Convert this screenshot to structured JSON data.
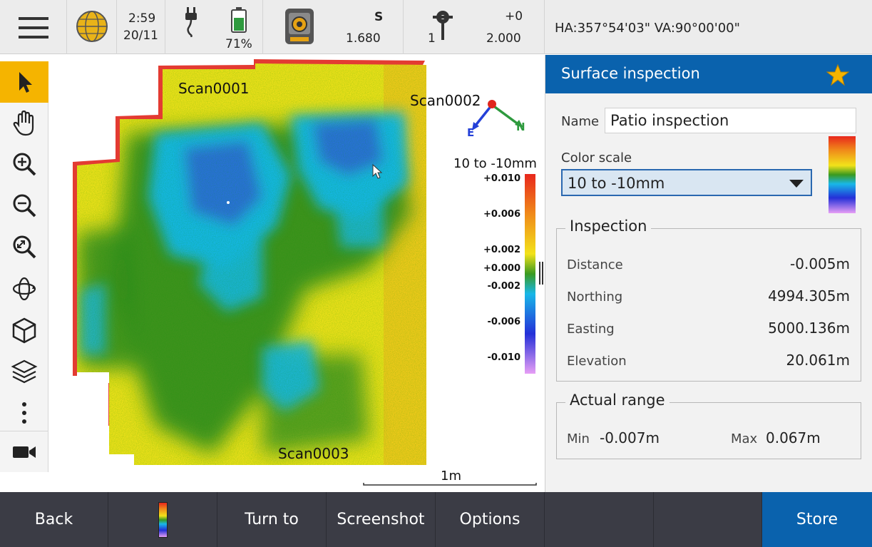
{
  "status": {
    "time": "2:59",
    "date": "20/11",
    "battery": "71%",
    "target_letter": "S",
    "target_height": "1.680",
    "prism_count": "1",
    "offset_top": "+0",
    "offset_value": "2.000",
    "angles": "HA:357°54'03\"  VA:90°00'00\"",
    "battery_level": 0.71
  },
  "toolbar": {
    "icons": [
      "select-arrow-icon",
      "pan-hand-icon",
      "zoom-in-icon",
      "zoom-out-icon",
      "zoom-extents-icon",
      "orbit-icon",
      "cube-view-icon",
      "layers-icon",
      "more-vertical-icon",
      "camera-icon"
    ]
  },
  "map": {
    "scans": [
      "Scan0001",
      "Scan0002",
      "Scan0003"
    ],
    "compass_e": "E",
    "compass_n": "N",
    "legend_title": "10 to -10mm",
    "legend_ticks": [
      "+0.010",
      "+0.006",
      "+0.002",
      "+0.000",
      "-0.002",
      "-0.006",
      "-0.010"
    ],
    "scale_label": "1m",
    "colors": {
      "yellow": "#f2e21a",
      "green": "#2e8a1f",
      "cyan": "#18b7e8",
      "blue": "#2c7bde",
      "red": "#e0261c"
    }
  },
  "panel": {
    "title": "Surface inspection",
    "name_label": "Name",
    "name_value": "Patio inspection",
    "color_scale_label": "Color scale",
    "color_scale_value": "10 to -10mm",
    "inspection_title": "Inspection",
    "rows": [
      {
        "label": "Distance",
        "value": "-0.005m"
      },
      {
        "label": "Northing",
        "value": "4994.305m"
      },
      {
        "label": "Easting",
        "value": "5000.136m"
      },
      {
        "label": "Elevation",
        "value": "20.061m"
      }
    ],
    "range_title": "Actual range",
    "min_label": "Min",
    "min_value": "-0.007m",
    "max_label": "Max",
    "max_value": "0.067m",
    "accent": "#0a62ad",
    "star_color": "#f5b400"
  },
  "bottom": {
    "back": "Back",
    "turn_to": "Turn to",
    "screenshot": "Screenshot",
    "options": "Options",
    "store": "Store"
  }
}
